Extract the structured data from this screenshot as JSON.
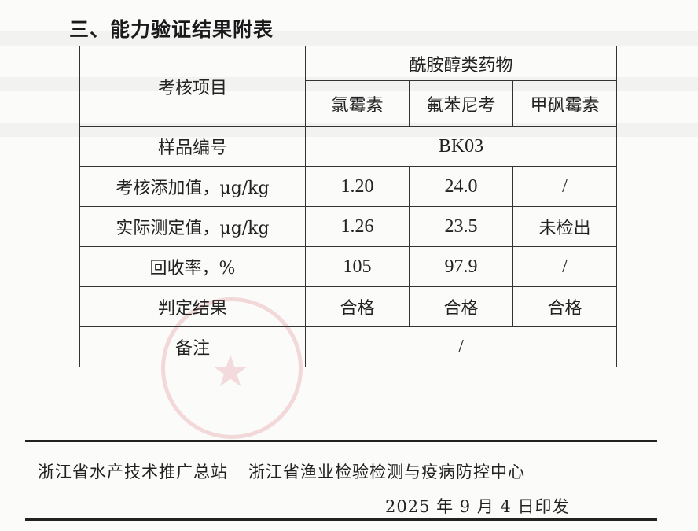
{
  "section_title": "三、能力验证结果附表",
  "table": {
    "item_header": "考核项目",
    "group_header": "酰胺醇类药物",
    "drugs": [
      "氯霉素",
      "氟苯尼考",
      "甲砜霉素"
    ],
    "sample_label": "样品编号",
    "sample_id": "BK03",
    "rows": [
      {
        "label": "考核添加值，μg/kg",
        "values": [
          "1.20",
          "24.0",
          "/"
        ]
      },
      {
        "label": "实际测定值，μg/kg",
        "values": [
          "1.26",
          "23.5",
          "未检出"
        ]
      },
      {
        "label": "回收率，%",
        "values": [
          "105",
          "97.9",
          "/"
        ]
      },
      {
        "label": "判定结果",
        "values": [
          "合格",
          "合格",
          "合格"
        ]
      }
    ],
    "remark_label": "备注",
    "remark_value": "/"
  },
  "footer": {
    "org1": "浙江省水产技术推广总站",
    "org2": "浙江省渔业检验检测与疫病防控中心",
    "issue_date": "2025 年 9 月 4 日印发"
  },
  "colors": {
    "stamp": "#d75a64",
    "text": "#222222"
  }
}
